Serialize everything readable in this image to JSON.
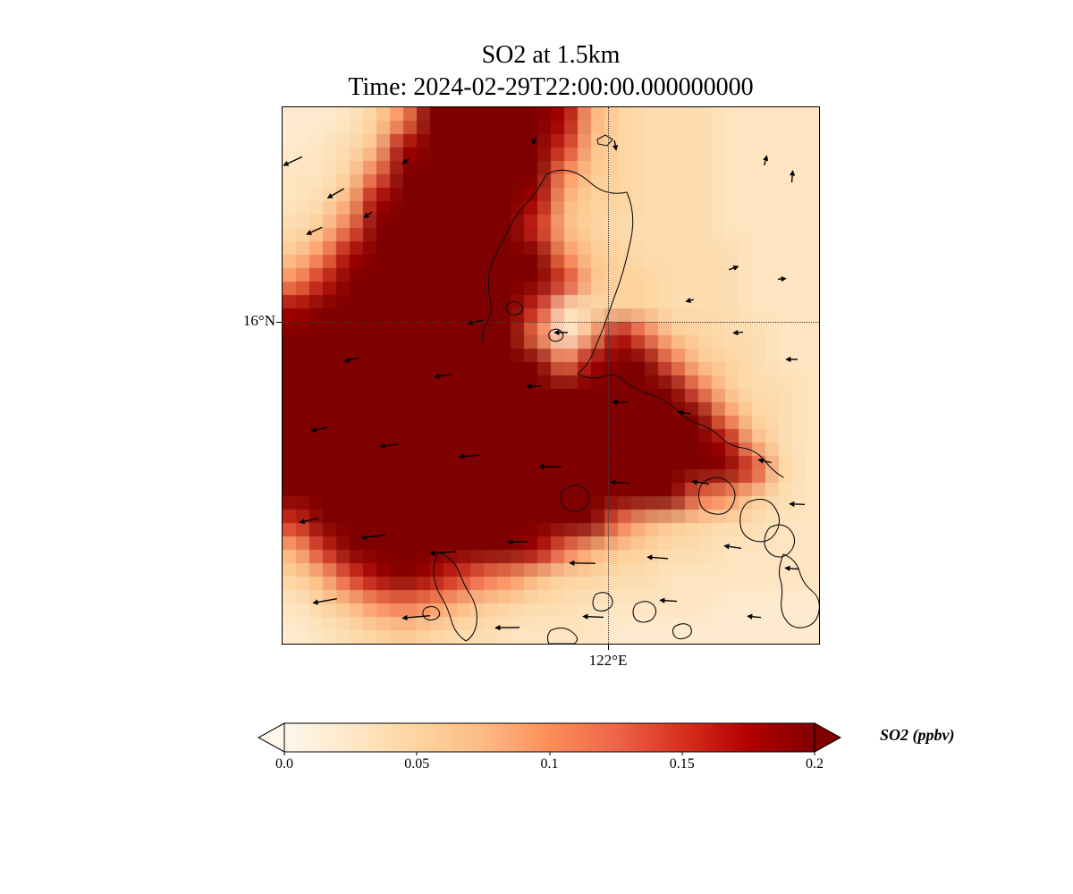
{
  "chart": {
    "title_line1": "SO2 at 1.5km",
    "title_line2": "Time: 2024-02-29T22:00:00.000000000",
    "lat_label": "16°N",
    "lon_label": "122°E",
    "colorbar_label": "SO2 (ppbv)"
  },
  "chart_data": {
    "type": "heatmap",
    "title": "SO2 at 1.5km",
    "subtitle": "Time: 2024-02-29T22:00:00.000000000",
    "variable": "SO2",
    "units": "ppbv",
    "level": "1.5km",
    "time": "2024-02-29T22:00:00.000000000",
    "colormap": "OrRd",
    "colormap_stops": [
      [
        0,
        "#fff7ec"
      ],
      [
        0.125,
        "#fee8c8"
      ],
      [
        0.25,
        "#fdd49e"
      ],
      [
        0.375,
        "#fdbb84"
      ],
      [
        0.5,
        "#fc8d59"
      ],
      [
        0.625,
        "#ef6548"
      ],
      [
        0.75,
        "#d7301f"
      ],
      [
        0.875,
        "#b30000"
      ],
      [
        1,
        "#7f0000"
      ]
    ],
    "vmin": 0.0,
    "vmax": 0.2,
    "extend": "both",
    "colorbar_ticks": [
      0.0,
      0.05,
      0.1,
      0.15,
      0.2
    ],
    "colorbar_tick_labels": [
      "0.0",
      "0.05",
      "0.1",
      "0.15",
      "0.2"
    ],
    "gridlines": {
      "lat": {
        "label": "16°N",
        "y_frac": 0.4
      },
      "lon": {
        "label": "122°E",
        "x_frac": 0.607
      }
    },
    "grid_note": "SO2 ppbv on 20x20 lon-lat cells, row 0 = north, values >= 0.25 saturate above vmax",
    "grid": [
      [
        0.02,
        0.02,
        0.03,
        0.05,
        0.1,
        0.22,
        0.25,
        0.25,
        0.25,
        0.25,
        0.18,
        0.08,
        0.05,
        0.04,
        0.04,
        0.04,
        0.03,
        0.03,
        0.03,
        0.03
      ],
      [
        0.02,
        0.03,
        0.04,
        0.07,
        0.18,
        0.25,
        0.25,
        0.25,
        0.25,
        0.25,
        0.15,
        0.07,
        0.05,
        0.04,
        0.04,
        0.04,
        0.03,
        0.03,
        0.03,
        0.03
      ],
      [
        0.03,
        0.03,
        0.05,
        0.12,
        0.22,
        0.25,
        0.25,
        0.25,
        0.25,
        0.22,
        0.1,
        0.06,
        0.05,
        0.04,
        0.04,
        0.04,
        0.03,
        0.03,
        0.03,
        0.03
      ],
      [
        0.03,
        0.04,
        0.08,
        0.18,
        0.25,
        0.25,
        0.25,
        0.25,
        0.25,
        0.18,
        0.08,
        0.05,
        0.05,
        0.04,
        0.04,
        0.04,
        0.03,
        0.03,
        0.03,
        0.03
      ],
      [
        0.04,
        0.06,
        0.12,
        0.22,
        0.25,
        0.25,
        0.25,
        0.25,
        0.25,
        0.15,
        0.07,
        0.05,
        0.04,
        0.04,
        0.04,
        0.04,
        0.03,
        0.03,
        0.03,
        0.03
      ],
      [
        0.06,
        0.1,
        0.18,
        0.25,
        0.25,
        0.25,
        0.25,
        0.25,
        0.25,
        0.2,
        0.1,
        0.06,
        0.05,
        0.04,
        0.04,
        0.04,
        0.04,
        0.03,
        0.03,
        0.03
      ],
      [
        0.1,
        0.16,
        0.22,
        0.25,
        0.25,
        0.25,
        0.25,
        0.25,
        0.25,
        0.25,
        0.15,
        0.07,
        0.05,
        0.05,
        0.04,
        0.04,
        0.04,
        0.03,
        0.03,
        0.03
      ],
      [
        0.18,
        0.22,
        0.25,
        0.25,
        0.25,
        0.25,
        0.25,
        0.25,
        0.25,
        0.15,
        0.03,
        0.04,
        0.05,
        0.05,
        0.04,
        0.04,
        0.04,
        0.03,
        0.03,
        0.03
      ],
      [
        0.25,
        0.25,
        0.25,
        0.25,
        0.25,
        0.25,
        0.25,
        0.25,
        0.25,
        0.1,
        0.01,
        0.08,
        0.18,
        0.12,
        0.06,
        0.05,
        0.04,
        0.04,
        0.03,
        0.03
      ],
      [
        0.25,
        0.25,
        0.25,
        0.25,
        0.25,
        0.25,
        0.25,
        0.25,
        0.25,
        0.2,
        0.1,
        0.18,
        0.25,
        0.22,
        0.12,
        0.06,
        0.05,
        0.04,
        0.03,
        0.03
      ],
      [
        0.25,
        0.25,
        0.25,
        0.25,
        0.25,
        0.25,
        0.25,
        0.25,
        0.25,
        0.25,
        0.22,
        0.25,
        0.25,
        0.25,
        0.2,
        0.12,
        0.06,
        0.04,
        0.04,
        0.03
      ],
      [
        0.25,
        0.25,
        0.25,
        0.25,
        0.25,
        0.25,
        0.25,
        0.25,
        0.25,
        0.25,
        0.25,
        0.25,
        0.25,
        0.25,
        0.25,
        0.2,
        0.1,
        0.05,
        0.04,
        0.03
      ],
      [
        0.25,
        0.25,
        0.25,
        0.25,
        0.25,
        0.25,
        0.25,
        0.25,
        0.25,
        0.25,
        0.25,
        0.25,
        0.25,
        0.25,
        0.25,
        0.25,
        0.18,
        0.08,
        0.04,
        0.03
      ],
      [
        0.25,
        0.25,
        0.25,
        0.25,
        0.25,
        0.25,
        0.25,
        0.25,
        0.25,
        0.25,
        0.25,
        0.25,
        0.25,
        0.25,
        0.25,
        0.25,
        0.25,
        0.15,
        0.05,
        0.03
      ],
      [
        0.22,
        0.25,
        0.25,
        0.25,
        0.25,
        0.25,
        0.25,
        0.25,
        0.25,
        0.25,
        0.25,
        0.25,
        0.25,
        0.25,
        0.22,
        0.12,
        0.1,
        0.06,
        0.04,
        0.03
      ],
      [
        0.15,
        0.22,
        0.25,
        0.25,
        0.25,
        0.25,
        0.25,
        0.25,
        0.25,
        0.25,
        0.25,
        0.22,
        0.12,
        0.08,
        0.06,
        0.05,
        0.04,
        0.04,
        0.03,
        0.03
      ],
      [
        0.08,
        0.15,
        0.22,
        0.25,
        0.25,
        0.25,
        0.25,
        0.25,
        0.22,
        0.18,
        0.12,
        0.08,
        0.06,
        0.05,
        0.04,
        0.04,
        0.03,
        0.03,
        0.03,
        0.03
      ],
      [
        0.05,
        0.08,
        0.14,
        0.18,
        0.2,
        0.18,
        0.15,
        0.12,
        0.1,
        0.07,
        0.05,
        0.05,
        0.04,
        0.04,
        0.03,
        0.03,
        0.03,
        0.03,
        0.03,
        0.03
      ],
      [
        0.03,
        0.05,
        0.07,
        0.1,
        0.12,
        0.1,
        0.08,
        0.06,
        0.05,
        0.04,
        0.04,
        0.03,
        0.03,
        0.03,
        0.03,
        0.03,
        0.02,
        0.02,
        0.02,
        0.02
      ],
      [
        0.02,
        0.03,
        0.04,
        0.05,
        0.06,
        0.05,
        0.04,
        0.04,
        0.03,
        0.03,
        0.03,
        0.03,
        0.02,
        0.02,
        0.02,
        0.02,
        0.02,
        0.02,
        0.02,
        0.02
      ]
    ],
    "wind_arrows_note": "each arrow is [x_frac, y_frac, direction_deg_ccw_from_east, length_px]",
    "wind_arrows": [
      [
        0.02,
        0.1,
        205,
        22
      ],
      [
        0.1,
        0.16,
        210,
        20
      ],
      [
        0.06,
        0.23,
        205,
        18
      ],
      [
        0.16,
        0.2,
        215,
        10
      ],
      [
        0.23,
        0.1,
        220,
        8
      ],
      [
        0.47,
        0.06,
        250,
        10
      ],
      [
        0.62,
        0.07,
        280,
        10
      ],
      [
        0.9,
        0.1,
        75,
        10
      ],
      [
        0.95,
        0.13,
        85,
        12
      ],
      [
        0.84,
        0.3,
        20,
        10
      ],
      [
        0.93,
        0.32,
        5,
        8
      ],
      [
        0.76,
        0.36,
        195,
        8
      ],
      [
        0.85,
        0.42,
        185,
        10
      ],
      [
        0.95,
        0.47,
        180,
        12
      ],
      [
        0.36,
        0.4,
        190,
        16
      ],
      [
        0.52,
        0.42,
        180,
        14
      ],
      [
        0.13,
        0.47,
        195,
        16
      ],
      [
        0.3,
        0.5,
        188,
        18
      ],
      [
        0.47,
        0.52,
        182,
        16
      ],
      [
        0.63,
        0.55,
        178,
        16
      ],
      [
        0.75,
        0.57,
        172,
        14
      ],
      [
        0.07,
        0.6,
        192,
        18
      ],
      [
        0.2,
        0.63,
        188,
        20
      ],
      [
        0.35,
        0.65,
        184,
        22
      ],
      [
        0.5,
        0.67,
        180,
        24
      ],
      [
        0.63,
        0.7,
        176,
        20
      ],
      [
        0.78,
        0.7,
        172,
        18
      ],
      [
        0.9,
        0.66,
        168,
        14
      ],
      [
        0.96,
        0.74,
        178,
        16
      ],
      [
        0.05,
        0.77,
        192,
        20
      ],
      [
        0.17,
        0.8,
        188,
        26
      ],
      [
        0.3,
        0.83,
        184,
        28
      ],
      [
        0.44,
        0.81,
        181,
        22
      ],
      [
        0.56,
        0.85,
        179,
        28
      ],
      [
        0.7,
        0.84,
        176,
        22
      ],
      [
        0.84,
        0.82,
        172,
        18
      ],
      [
        0.95,
        0.86,
        175,
        14
      ],
      [
        0.08,
        0.92,
        190,
        26
      ],
      [
        0.25,
        0.95,
        185,
        30
      ],
      [
        0.42,
        0.97,
        181,
        26
      ],
      [
        0.58,
        0.95,
        178,
        22
      ],
      [
        0.72,
        0.92,
        176,
        18
      ],
      [
        0.88,
        0.95,
        174,
        14
      ]
    ]
  }
}
